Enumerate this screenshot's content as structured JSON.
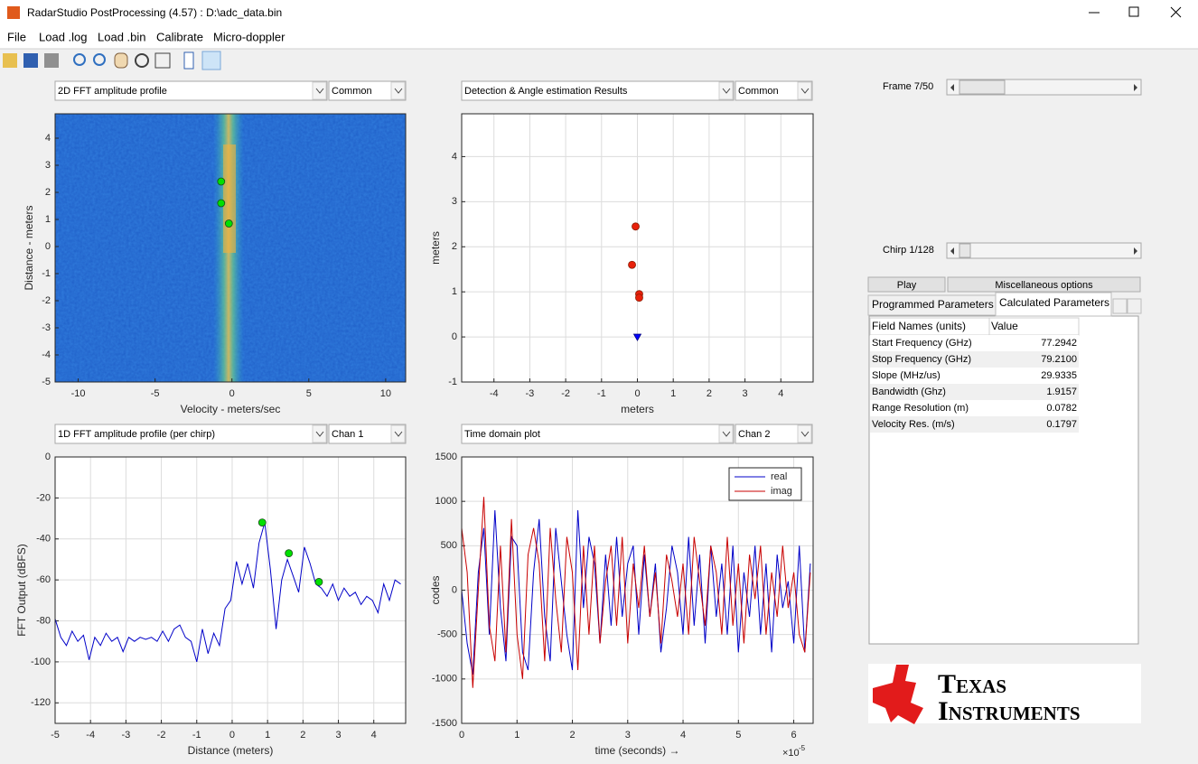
{
  "window": {
    "title": "RadarStudio PostProcessing (4.57)  : D:\\adc_data.bin"
  },
  "menu": [
    "File",
    "Load .log",
    "Load .bin",
    "Calibrate",
    "Micro-doppler"
  ],
  "panels": [
    {
      "plot": "2D FFT amplitude profile",
      "option": "Common"
    },
    {
      "plot": "Detection & Angle estimation Results",
      "option": "Common"
    },
    {
      "plot": "1D FFT amplitude profile (per chirp)",
      "option": "Chan 1"
    },
    {
      "plot": "Time domain plot",
      "option": "Chan 2"
    }
  ],
  "controls": {
    "frame": "Frame 7/50",
    "chirp": "Chirp 1/128",
    "play": "Play",
    "misc": "Miscellaneous options"
  },
  "parameters": {
    "tabs": [
      "Programmed Parameters",
      "Calculated Parameters"
    ],
    "header": [
      "Field Names    (units)",
      "Value"
    ],
    "rows": [
      [
        "Start Frequency (GHz)",
        "77.2942"
      ],
      [
        "Stop Frequency (GHz)",
        "79.2100"
      ],
      [
        "Slope (MHz/us)",
        "29.9335"
      ],
      [
        "Bandwidth (Ghz)",
        "1.9157"
      ],
      [
        "Range Resolution (m)",
        "0.0782"
      ],
      [
        "Velocity Res. (m/s)",
        "0.1797"
      ]
    ]
  },
  "logo": [
    "Texas",
    "Instruments"
  ],
  "chart_data": [
    {
      "type": "heatmap",
      "xlabel": "Velocity - meters/sec",
      "ylabel": "Distance - meters",
      "xlim": [
        -11.5,
        11.3
      ],
      "ylim": [
        -5,
        4.9
      ],
      "xticks": [
        -10,
        -5,
        0,
        5,
        10
      ],
      "yticks": [
        -5,
        -4,
        -3,
        -2,
        -1,
        0,
        1,
        2,
        3,
        4
      ],
      "grid": false,
      "markers": {
        "x": [
          -0.7,
          -0.7,
          -0.2
        ],
        "y": [
          2.4,
          1.6,
          0.85
        ],
        "color": "#00e000"
      }
    },
    {
      "type": "scatter",
      "xlabel": "meters",
      "ylabel": "meters",
      "xlim": [
        -4.9,
        4.9
      ],
      "ylim": [
        -1,
        4.95
      ],
      "xticks": [
        -4,
        -3,
        -2,
        -1,
        0,
        1,
        2,
        3,
        4
      ],
      "yticks": [
        -1,
        0,
        1,
        2,
        3,
        4
      ],
      "grid": true,
      "series": [
        {
          "color": "#e8200a",
          "marker": "circle",
          "x": [
            -0.05,
            -0.15,
            0.05,
            0.05
          ],
          "y": [
            2.45,
            1.6,
            0.95,
            0.87
          ]
        },
        {
          "color": "#0000ff",
          "marker": "triangle",
          "x": [
            0
          ],
          "y": [
            0
          ]
        }
      ]
    },
    {
      "type": "line",
      "xlabel": "Distance (meters)",
      "ylabel": "FFT Output (dBFS)",
      "xlim": [
        -5,
        4.9
      ],
      "ylim": [
        -130,
        0
      ],
      "xticks": [
        -5,
        -4,
        -3,
        -2,
        -1,
        0,
        1,
        2,
        3,
        4
      ],
      "yticks": [
        -120,
        -100,
        -80,
        -60,
        -40,
        -20,
        0
      ],
      "grid": true,
      "x": [
        -5,
        -4.84,
        -4.68,
        -4.52,
        -4.36,
        -4.2,
        -4.04,
        -3.88,
        -3.72,
        -3.56,
        -3.4,
        -3.24,
        -3.08,
        -2.92,
        -2.76,
        -2.6,
        -2.44,
        -2.28,
        -2.12,
        -1.96,
        -1.8,
        -1.64,
        -1.48,
        -1.32,
        -1.16,
        -1,
        -0.84,
        -0.68,
        -0.52,
        -0.36,
        -0.2,
        -0.04,
        0.12,
        0.28,
        0.44,
        0.6,
        0.76,
        0.92,
        1.08,
        1.24,
        1.4,
        1.56,
        1.72,
        1.88,
        2.04,
        2.2,
        2.36,
        2.52,
        2.68,
        2.84,
        3,
        3.16,
        3.32,
        3.48,
        3.64,
        3.8,
        3.96,
        4.12,
        4.28,
        4.44,
        4.6,
        4.76
      ],
      "series": [
        {
          "color": "#0000c8",
          "values": [
            -79,
            -88,
            -92,
            -85,
            -90,
            -87,
            -99,
            -88,
            -92,
            -86,
            -90,
            -88,
            -95,
            -88,
            -90,
            -88,
            -89,
            -88,
            -90,
            -85,
            -90,
            -84,
            -82,
            -88,
            -90,
            -100,
            -84,
            -96,
            -86,
            -92,
            -74,
            -70,
            -51,
            -62,
            -52,
            -64,
            -42,
            -32,
            -55,
            -84,
            -60,
            -50,
            -58,
            -66,
            -44,
            -52,
            -62,
            -64,
            -68,
            -62,
            -70,
            -64,
            -68,
            -66,
            -72,
            -68,
            -70,
            -76,
            -62,
            -70,
            -60,
            -62
          ]
        }
      ],
      "markers": {
        "x": [
          0.85,
          1.6,
          2.45
        ],
        "y": [
          -32,
          -47,
          -61
        ],
        "color": "#00e000"
      }
    },
    {
      "type": "line",
      "xlabel": "time  (seconds) →",
      "ylabel": "codes",
      "x_offset_text": {
        "base": "×10",
        "exponent": "-5"
      },
      "xlim": [
        0,
        6.35e-05
      ],
      "ylim": [
        -1500,
        1500
      ],
      "xticks": [
        {
          "value": 0,
          "label": "0"
        },
        {
          "value": 1e-05,
          "label": "1"
        },
        {
          "value": 2e-05,
          "label": "2"
        },
        {
          "value": 3e-05,
          "label": "3"
        },
        {
          "value": 4e-05,
          "label": "4"
        },
        {
          "value": 5e-05,
          "label": "5"
        },
        {
          "value": 6e-05,
          "label": "6"
        }
      ],
      "yticks": [
        -1500,
        -1000,
        -500,
        0,
        500,
        1000,
        1500
      ],
      "grid": true,
      "legend": "upper right",
      "x": [
        0,
        1e-06,
        2e-06,
        3e-06,
        4e-06,
        5e-06,
        6e-06,
        7e-06,
        8e-06,
        9e-06,
        1e-05,
        1.1e-05,
        1.2e-05,
        1.3e-05,
        1.4e-05,
        1.5e-05,
        1.6e-05,
        1.7e-05,
        1.8e-05,
        1.9e-05,
        2e-05,
        2.1e-05,
        2.2e-05,
        2.3e-05,
        2.4e-05,
        2.5e-05,
        2.6e-05,
        2.7e-05,
        2.8e-05,
        2.9e-05,
        3e-05,
        3.1e-05,
        3.2e-05,
        3.3e-05,
        3.4e-05,
        3.5e-05,
        3.6e-05,
        3.7e-05,
        3.8e-05,
        3.9e-05,
        4e-05,
        4.1e-05,
        4.2e-05,
        4.3e-05,
        4.4e-05,
        4.5e-05,
        4.6e-05,
        4.7e-05,
        4.8e-05,
        4.9e-05,
        5e-05,
        5.1e-05,
        5.2e-05,
        5.3e-05,
        5.4e-05,
        5.5e-05,
        5.6e-05,
        5.7e-05,
        5.8e-05,
        5.9e-05,
        6e-05,
        6.1e-05,
        6.2e-05,
        6.3e-05
      ],
      "series": [
        {
          "name": "real",
          "color": "#0000c8",
          "values": [
            0,
            -600,
            -950,
            200,
            700,
            -500,
            900,
            -200,
            -800,
            600,
            500,
            -700,
            -900,
            200,
            800,
            -300,
            -800,
            700,
            100,
            -500,
            -900,
            900,
            -200,
            600,
            300,
            -600,
            400,
            -400,
            600,
            -300,
            300,
            500,
            -500,
            400,
            -300,
            300,
            -700,
            -200,
            500,
            200,
            -500,
            600,
            -400,
            400,
            -600,
            500,
            -300,
            300,
            -500,
            500,
            -700,
            200,
            -300,
            500,
            -500,
            300,
            -700,
            400,
            -200,
            100,
            -600,
            500,
            -700,
            300
          ]
        },
        {
          "name": "imag",
          "color": "#c80000",
          "values": [
            700,
            200,
            -1100,
            0,
            1050,
            -400,
            -800,
            500,
            -700,
            800,
            -500,
            -1000,
            400,
            700,
            300,
            -800,
            700,
            -100,
            -700,
            600,
            200,
            -900,
            500,
            -500,
            500,
            -600,
            100,
            500,
            -400,
            600,
            -600,
            300,
            -200,
            500,
            -300,
            200,
            -600,
            400,
            100,
            -300,
            300,
            -500,
            600,
            100,
            -400,
            500,
            200,
            -500,
            600,
            -400,
            300,
            -600,
            400,
            -100,
            500,
            -500,
            200,
            -300,
            500,
            -200,
            200,
            -500,
            -700,
            200
          ]
        }
      ]
    }
  ]
}
